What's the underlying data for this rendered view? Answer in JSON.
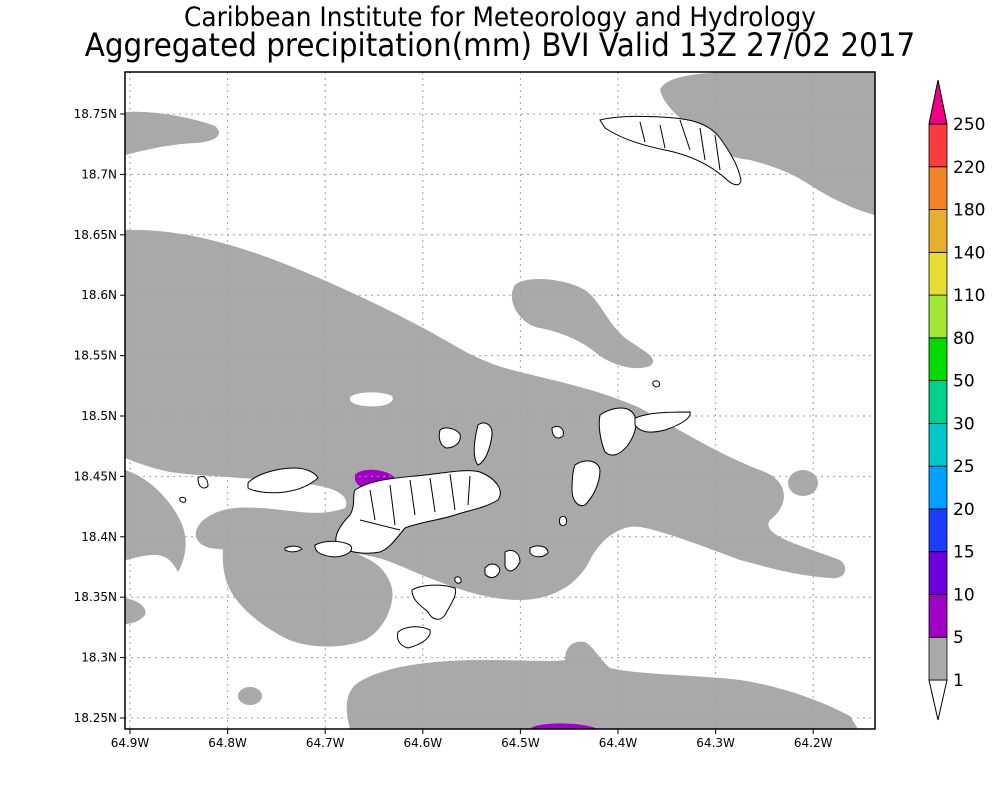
{
  "title": {
    "line1": "Caribbean Institute for Meteorology and Hydrology",
    "line2": "Aggregated precipitation(mm) BVI Valid 13Z 27/02 2017"
  },
  "axes": {
    "lat_labels": [
      "18.75N",
      "18.7N",
      "18.65N",
      "18.6N",
      "18.55N",
      "18.5N",
      "18.45N",
      "18.4N",
      "18.35N",
      "18.3N",
      "18.25N"
    ],
    "lon_labels": [
      "64.9W",
      "64.8W",
      "64.7W",
      "64.6W",
      "64.5W",
      "64.4W",
      "64.3W",
      "64.2W"
    ]
  },
  "legend": {
    "levels": [
      "1",
      "5",
      "10",
      "15",
      "20",
      "25",
      "30",
      "50",
      "80",
      "110",
      "140",
      "180",
      "220",
      "250"
    ],
    "colors": [
      "#ffffff",
      "#a9a9a9",
      "#a000c8",
      "#6e00dc",
      "#1e3cff",
      "#00a0ff",
      "#00c8c8",
      "#00d28c",
      "#00dc00",
      "#a0e632",
      "#e6dc32",
      "#e6af2d",
      "#f08228",
      "#fa3c3c",
      "#f00082"
    ]
  },
  "colors": {
    "precip_light": "#a9a9a9",
    "precip_heavy": "#a000c8",
    "land_outline": "#000000",
    "grid": "#a0a0a0"
  }
}
